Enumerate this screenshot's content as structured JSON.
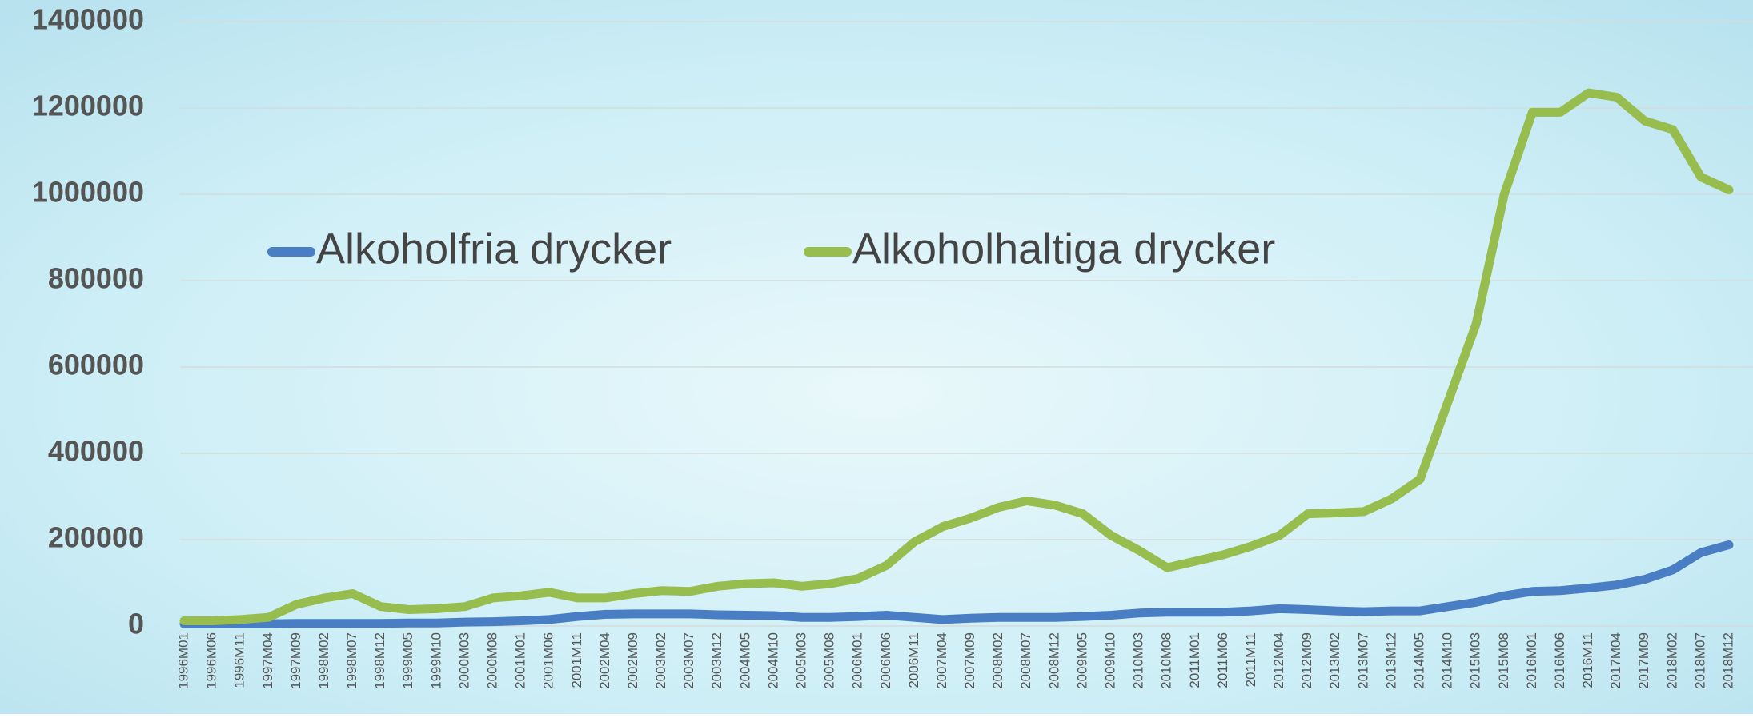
{
  "chart_data": {
    "type": "line",
    "categories": [
      "1996M01",
      "1996M06",
      "1996M11",
      "1997M04",
      "1997M09",
      "1998M02",
      "1998M07",
      "1998M12",
      "1999M05",
      "1999M10",
      "2000M03",
      "2000M08",
      "2001M01",
      "2001M06",
      "2001M11",
      "2002M04",
      "2002M09",
      "2003M02",
      "2003M07",
      "2003M12",
      "2004M05",
      "2004M10",
      "2005M03",
      "2005M08",
      "2006M01",
      "2006M06",
      "2006M11",
      "2007M04",
      "2007M09",
      "2008M02",
      "2008M07",
      "2008M12",
      "2009M05",
      "2009M10",
      "2010M03",
      "2010M08",
      "2011M01",
      "2011M06",
      "2011M11",
      "2012M04",
      "2012M09",
      "2013M02",
      "2013M07",
      "2013M12",
      "2014M05",
      "2014M10",
      "2015M03",
      "2015M08",
      "2016M01",
      "2016M06",
      "2016M11",
      "2017M04",
      "2017M09",
      "2018M02",
      "2018M07",
      "2018M12"
    ],
    "series": [
      {
        "name": "Alkoholfria drycker",
        "color": "#4a7ec4",
        "values": [
          5000,
          5000,
          5000,
          5000,
          6000,
          6000,
          6000,
          6000,
          7000,
          7000,
          9000,
          10000,
          12000,
          15000,
          22000,
          27000,
          28000,
          28000,
          28000,
          26000,
          25000,
          24000,
          20000,
          20000,
          22000,
          25000,
          20000,
          15000,
          18000,
          20000,
          20000,
          20000,
          22000,
          25000,
          30000,
          32000,
          32000,
          32000,
          35000,
          40000,
          38000,
          35000,
          33000,
          35000,
          35000,
          45000,
          55000,
          70000,
          80000,
          82000,
          88000,
          95000,
          108000,
          130000,
          170000,
          188000
        ]
      },
      {
        "name": "Alkoholhaltiga drycker",
        "color": "#97bd4f",
        "values": [
          12000,
          12000,
          15000,
          20000,
          50000,
          65000,
          75000,
          45000,
          38000,
          40000,
          45000,
          65000,
          70000,
          78000,
          65000,
          65000,
          75000,
          82000,
          80000,
          92000,
          98000,
          100000,
          92000,
          98000,
          110000,
          140000,
          195000,
          230000,
          250000,
          275000,
          290000,
          280000,
          260000,
          210000,
          175000,
          135000,
          150000,
          165000,
          185000,
          210000,
          260000,
          262000,
          265000,
          295000,
          340000,
          520000,
          700000,
          1000000,
          1190000,
          1190000,
          1235000,
          1225000,
          1170000,
          1150000,
          1040000,
          1010000
        ]
      }
    ],
    "ylim": [
      0,
      1400000
    ],
    "yticks": [
      0,
      200000,
      400000,
      600000,
      800000,
      1000000,
      1200000,
      1400000
    ],
    "grid": true
  }
}
